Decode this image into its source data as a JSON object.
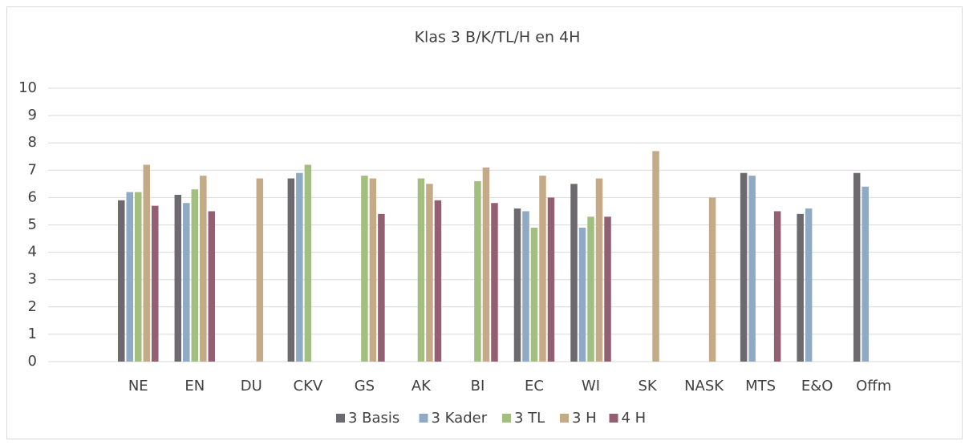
{
  "chart_data": {
    "type": "bar",
    "title": "Klas 3 B/K/TL/H en 4H",
    "categories": [
      "NE",
      "EN",
      "DU",
      "CKV",
      "GS",
      "AK",
      "BI",
      "EC",
      "WI",
      "SK",
      "NASK",
      "MTS",
      "E&O",
      "Offm",
      null
    ],
    "series": [
      {
        "name": "3 Basis",
        "color": "#6d6a6f",
        "values": [
          5.9,
          6.1,
          null,
          6.7,
          null,
          null,
          null,
          5.6,
          6.5,
          null,
          null,
          6.9,
          5.4,
          6.9,
          null
        ]
      },
      {
        "name": "3 Kader",
        "color": "#8faac4",
        "values": [
          6.2,
          5.8,
          null,
          6.9,
          null,
          null,
          null,
          5.5,
          4.9,
          null,
          null,
          6.8,
          5.6,
          6.4,
          null
        ]
      },
      {
        "name": "3 TL",
        "color": "#a3bf7f",
        "values": [
          6.2,
          6.3,
          null,
          7.2,
          6.8,
          6.7,
          6.6,
          4.9,
          5.3,
          null,
          null,
          null,
          null,
          null,
          null
        ]
      },
      {
        "name": "3 H",
        "color": "#c4aa86",
        "values": [
          7.2,
          6.8,
          6.7,
          null,
          6.7,
          6.5,
          7.1,
          6.8,
          6.7,
          7.7,
          6.0,
          null,
          null,
          null,
          null
        ]
      },
      {
        "name": "4 H",
        "color": "#955f73",
        "values": [
          5.7,
          5.5,
          null,
          null,
          5.4,
          5.9,
          5.8,
          6.0,
          5.3,
          null,
          null,
          5.5,
          null,
          null,
          null
        ]
      }
    ],
    "ylim": [
      0,
      10
    ],
    "yticks": [
      0,
      1,
      2,
      3,
      4,
      5,
      6,
      7,
      8,
      9,
      10
    ],
    "grid": true,
    "legend": "bottom"
  }
}
